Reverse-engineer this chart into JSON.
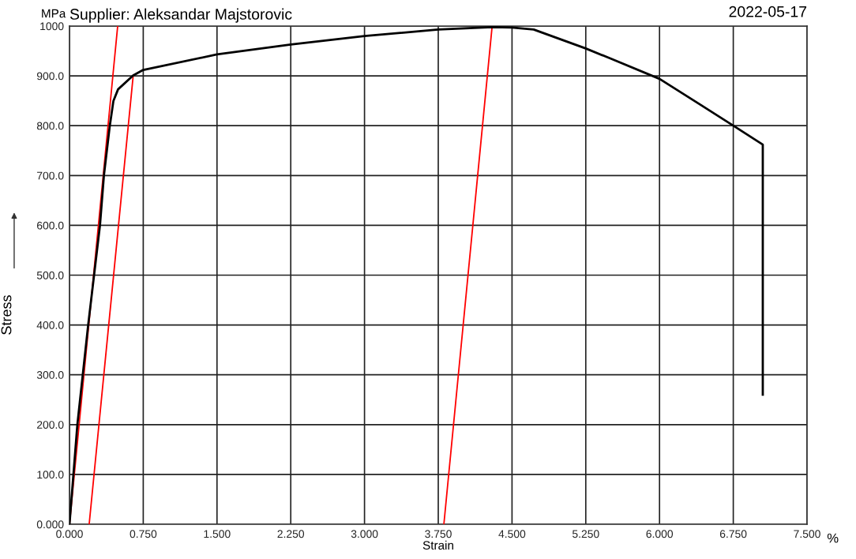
{
  "chart_data": {
    "type": "line",
    "title": "Supplier: Aleksandar Majstorovic",
    "xlabel": "Strain",
    "ylabel": "Stress",
    "annotations": [
      "MPa",
      "2022-05-17",
      "%"
    ],
    "xlim": [
      0,
      7.5
    ],
    "ylim": [
      0,
      1000
    ],
    "xticks": [
      {
        "value": 0,
        "label": "0.000"
      },
      {
        "value": 0.75,
        "label": "0.750"
      },
      {
        "value": 1.5,
        "label": "1.500"
      },
      {
        "value": 2.25,
        "label": "2.250"
      },
      {
        "value": 3,
        "label": "3.000"
      },
      {
        "value": 3.75,
        "label": "3.750"
      },
      {
        "value": 4.5,
        "label": "4.500"
      },
      {
        "value": 5.25,
        "label": "5.250"
      },
      {
        "value": 6,
        "label": "6.000"
      },
      {
        "value": 6.75,
        "label": "6.750"
      },
      {
        "value": 7.5,
        "label": "7.500"
      }
    ],
    "yticks": [
      {
        "value": 0,
        "label": "0.000"
      },
      {
        "value": 100,
        "label": "100.0"
      },
      {
        "value": 200,
        "label": "200.0"
      },
      {
        "value": 300,
        "label": "300.0"
      },
      {
        "value": 400,
        "label": "400.0"
      },
      {
        "value": 500,
        "label": "500.0"
      },
      {
        "value": 600,
        "label": "600.0"
      },
      {
        "value": 700,
        "label": "700.0"
      },
      {
        "value": 800,
        "label": "800.0"
      },
      {
        "value": 900,
        "label": "900.0"
      },
      {
        "value": 1000,
        "label": "1000"
      }
    ],
    "grid": true,
    "marker": "none",
    "line_style": "solid",
    "series": [
      {
        "color": "#ff0000",
        "x": [
          0,
          0.49
        ],
        "values": [
          0,
          1000
        ]
      },
      {
        "color": "#ff0000",
        "x": [
          0.2,
          0.648
        ],
        "values": [
          0,
          901
        ]
      },
      {
        "color": "#ff0000",
        "x": [
          3.807,
          4.297
        ],
        "values": [
          0,
          998
        ]
      },
      {
        "color": "#000000",
        "x": [
          0,
          0.08,
          0.19,
          0.31,
          0.35,
          0.41,
          0.447,
          0.494,
          0.648,
          0.75,
          1.5,
          2.25,
          3.0,
          3.75,
          4.3,
          4.5,
          4.72,
          5.25,
          5.5,
          6.0,
          6.4,
          6.75,
          7.05,
          7.05
        ],
        "values": [
          0,
          200,
          400,
          600,
          700,
          800,
          850,
          873,
          901,
          912,
          943,
          963,
          980,
          993,
          998,
          997,
          993,
          955,
          935,
          894,
          844,
          800,
          762,
          260
        ]
      }
    ]
  }
}
